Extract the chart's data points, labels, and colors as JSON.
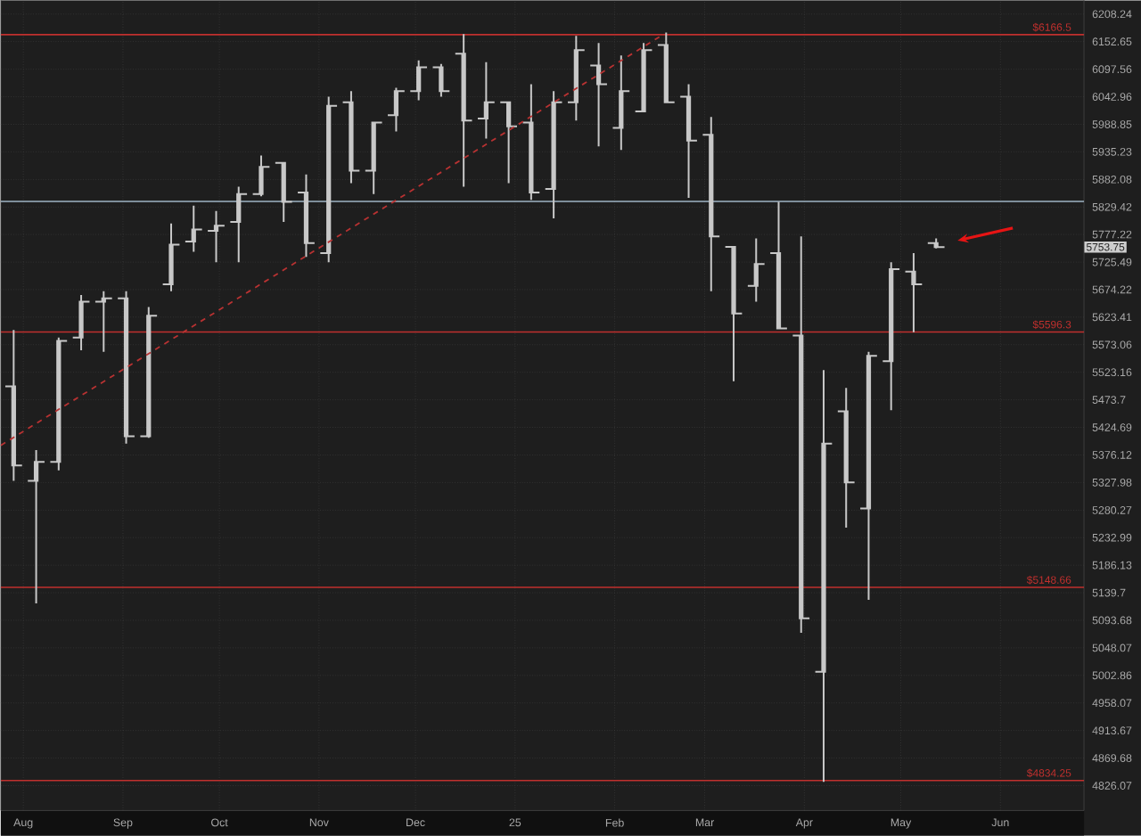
{
  "chart_data": {
    "type": "candlestick",
    "log": true,
    "grid": true,
    "xlim": [
      "2024-07-25",
      "2025-06-27"
    ],
    "ylim": [
      4787,
      6237
    ],
    "xticks": [
      {
        "value": "2024-08-01",
        "label": "Aug"
      },
      {
        "value": "2024-09-01",
        "label": "Sep"
      },
      {
        "value": "2024-10-01",
        "label": "Oct"
      },
      {
        "value": "2024-11-01",
        "label": "Nov"
      },
      {
        "value": "2024-12-01",
        "label": "Dec"
      },
      {
        "value": "2025-01-01",
        "label": "25"
      },
      {
        "value": "2025-02-01",
        "label": "Feb"
      },
      {
        "value": "2025-03-01",
        "label": "Mar"
      },
      {
        "value": "2025-04-01",
        "label": "Apr"
      },
      {
        "value": "2025-05-01",
        "label": "May"
      },
      {
        "value": "2025-06-01",
        "label": "Jun"
      }
    ],
    "yticks": [
      4826.07,
      4869.68,
      4913.67,
      4958.07,
      5002.86,
      5048.07,
      5093.68,
      5139.7,
      5186.13,
      5232.99,
      5280.27,
      5327.98,
      5376.12,
      5424.69,
      5473.7,
      5523.16,
      5573.06,
      5623.41,
      5674.22,
      5725.49,
      5777.22,
      5829.42,
      5882.08,
      5935.23,
      5988.85,
      6042.96,
      6097.56,
      6152.65,
      6208.24
    ],
    "ref_lines": [
      {
        "axis": "y",
        "value": 6166.5,
        "label": "$6166.5",
        "color": "#c0302e"
      },
      {
        "axis": "y",
        "value": 5596.3,
        "label": "$5596.3",
        "color": "#c0302e"
      },
      {
        "axis": "y",
        "value": 5148.66,
        "label": "$5148.66",
        "color": "#c0302e"
      },
      {
        "axis": "y",
        "value": 4834.25,
        "label": "$4834.25",
        "color": "#c0302e"
      },
      {
        "axis": "y",
        "value": 5840,
        "color": "#9fb4c4"
      }
    ],
    "annotations": [
      "5753.75"
    ],
    "series": [
      {
        "color": "#c8c8c8",
        "x": [
          "2024-07-29",
          "2024-08-05",
          "2024-08-12",
          "2024-08-19",
          "2024-08-26",
          "2024-09-02",
          "2024-09-09",
          "2024-09-16",
          "2024-09-23",
          "2024-09-30",
          "2024-10-07",
          "2024-10-14",
          "2024-10-21",
          "2024-10-28",
          "2024-11-04",
          "2024-11-11",
          "2024-11-18",
          "2024-11-25",
          "2024-12-02",
          "2024-12-09",
          "2024-12-16",
          "2024-12-23",
          "2024-12-30",
          "2025-01-06",
          "2025-01-13",
          "2025-01-20",
          "2025-01-27",
          "2025-02-03",
          "2025-02-10",
          "2025-02-17",
          "2025-02-24",
          "2025-03-03",
          "2025-03-10",
          "2025-03-17",
          "2025-03-24",
          "2025-03-31",
          "2025-04-07",
          "2025-04-14",
          "2025-04-21",
          "2025-04-28",
          "2025-05-05",
          "2025-05-12"
        ],
        "ohlc": [
          [
            5498,
            5600,
            5331,
            5358
          ],
          [
            5331,
            5385,
            5122,
            5364
          ],
          [
            5364,
            5586,
            5349,
            5580
          ],
          [
            5586,
            5664,
            5563,
            5652
          ],
          [
            5652,
            5671,
            5560,
            5658
          ],
          [
            5658,
            5671,
            5396,
            5409
          ],
          [
            5409,
            5642,
            5406,
            5626
          ],
          [
            5684,
            5798,
            5671,
            5758
          ],
          [
            5764,
            5832,
            5745,
            5787
          ],
          [
            5784,
            5822,
            5725,
            5794
          ],
          [
            5801,
            5868,
            5725,
            5854
          ],
          [
            5854,
            5928,
            5850,
            5906
          ],
          [
            5914,
            5914,
            5801,
            5839
          ],
          [
            5857,
            5892,
            5735,
            5761
          ],
          [
            5742,
            6043,
            5725,
            6025
          ],
          [
            6032,
            6054,
            5875,
            5899
          ],
          [
            5899,
            5992,
            5854,
            5992
          ],
          [
            6007,
            6061,
            5975,
            6054
          ],
          [
            6054,
            6115,
            6036,
            6101
          ],
          [
            6101,
            6108,
            6043,
            6054
          ],
          [
            6129,
            6168,
            5868,
            5996
          ],
          [
            6000,
            6112,
            5961,
            6032
          ],
          [
            6032,
            6032,
            5875,
            5985
          ],
          [
            5992,
            6068,
            5843,
            5857
          ],
          [
            5864,
            6054,
            5808,
            6032
          ],
          [
            6032,
            6164,
            5996,
            6136
          ],
          [
            6105,
            6150,
            5946,
            6068
          ],
          [
            5982,
            6125,
            5939,
            6054
          ],
          [
            6014,
            6150,
            6014,
            6136
          ],
          [
            6146,
            6171,
            6032,
            6032
          ],
          [
            6043,
            6068,
            5847,
            5957
          ],
          [
            5968,
            6003,
            5671,
            5774
          ],
          [
            5754,
            5754,
            5507,
            5630
          ],
          [
            5681,
            5770,
            5652,
            5722
          ],
          [
            5742,
            5839,
            5603,
            5603
          ],
          [
            5590,
            5774,
            5073,
            5097
          ],
          [
            5009,
            5527,
            4832,
            5396
          ],
          [
            5453,
            5495,
            5250,
            5328
          ],
          [
            5283,
            5560,
            5128,
            5553
          ],
          [
            5543,
            5725,
            5455,
            5712
          ],
          [
            5708,
            5742,
            5596,
            5684
          ],
          [
            5761,
            5770,
            5751,
            5753.75
          ]
        ]
      },
      {
        "type": "line",
        "color": "#b83232",
        "line_style": "dashed",
        "x": [
          "2024-07-25",
          "2025-02-16"
        ],
        "values": [
          5393,
          6166.5
        ]
      }
    ]
  }
}
